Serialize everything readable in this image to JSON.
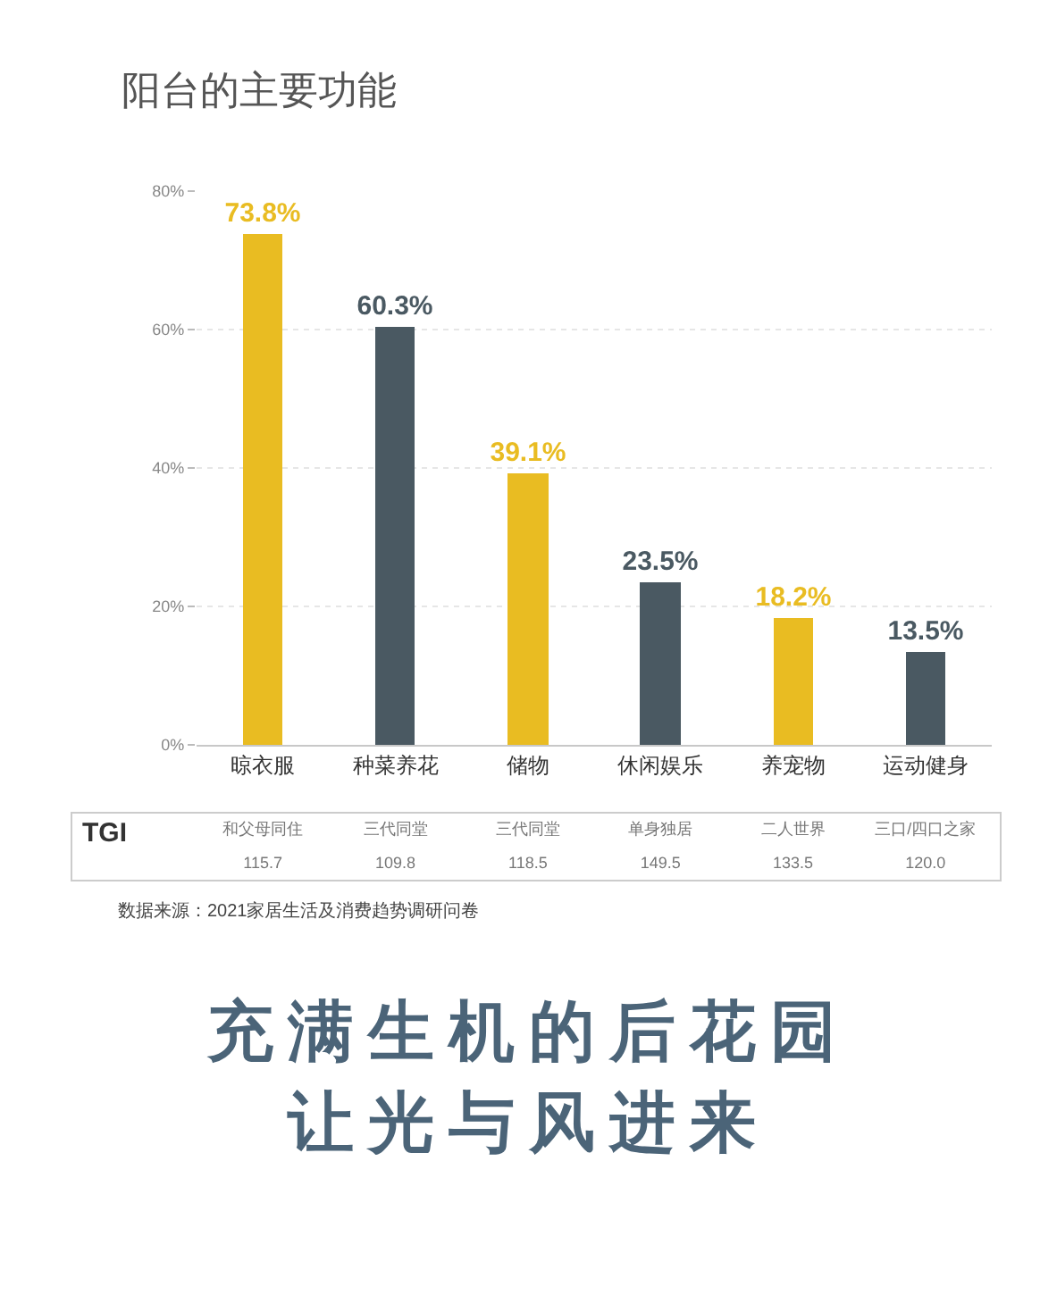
{
  "chart_data": [
    {
      "type": "bar",
      "title": "阳台的主要功能",
      "categories": [
        "晾衣服",
        "种菜养花",
        "储物",
        "休闲娱乐",
        "养宠物",
        "运动健身"
      ],
      "values": [
        73.8,
        60.3,
        39.1,
        23.5,
        18.2,
        13.5
      ],
      "colors": [
        "#e9bc22",
        "#4a5962",
        "#e9bc22",
        "#4a5962",
        "#e9bc22",
        "#4a5962"
      ],
      "value_labels": [
        "73.8%",
        "60.3%",
        "39.1%",
        "23.5%",
        "18.2%",
        "13.5%"
      ],
      "ylim": [
        0,
        80
      ],
      "yticks": [
        {
          "value": 0,
          "label": "0%"
        },
        {
          "value": 20,
          "label": "20%"
        },
        {
          "value": 40,
          "label": "40%"
        },
        {
          "value": 60,
          "label": "60%"
        },
        {
          "value": 80,
          "label": "80%"
        }
      ],
      "grid": "y"
    },
    {
      "type": "other",
      "title": "TGI",
      "categories": [
        "和父母同住",
        "三代同堂",
        "三代同堂",
        "单身独居",
        "二人世界",
        "三口/四口之家"
      ],
      "values": [
        115.7,
        109.8,
        118.5,
        149.5,
        133.5,
        120.0
      ],
      "value_labels": [
        "115.7",
        "109.8",
        "118.5",
        "149.5",
        "133.5",
        "120.0"
      ],
      "annotations": [
        "数据来源：2021家居生活及消费趋势调研问卷",
        "充满生机的后花园",
        "让光与风进来"
      ]
    }
  ]
}
